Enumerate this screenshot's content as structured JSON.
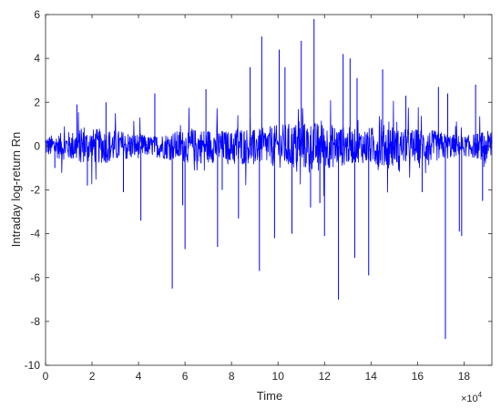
{
  "chart_data": {
    "type": "line",
    "title": "",
    "xlabel": "Time",
    "ylabel": "Intraday log-return Rn",
    "x_multiplier_base": "×10",
    "x_multiplier_exp": "4",
    "xlim": [
      0,
      19.2
    ],
    "ylim": [
      -10,
      6
    ],
    "x_ticks": [
      0,
      2,
      4,
      6,
      8,
      10,
      12,
      14,
      16,
      18
    ],
    "y_ticks": [
      6,
      4,
      2,
      0,
      -2,
      -4,
      -6,
      -8,
      -10
    ],
    "grid": false,
    "line_color": "#0000ff",
    "series": [
      {
        "values_note_free": true,
        "x": [
          0.0,
          0.15,
          0.4,
          1.35,
          1.8,
          2.6,
          3.35,
          4.1,
          4.7,
          5.25,
          5.45,
          5.5,
          5.9,
          6.0,
          6.9,
          7.4,
          7.6,
          8.3,
          8.8,
          9.2,
          9.3,
          9.4,
          10.05,
          10.6,
          11.0,
          11.4,
          11.55,
          12.0,
          12.4,
          12.6,
          13.1,
          13.3,
          13.4,
          13.9,
          14.5,
          15.5,
          16.6,
          16.9,
          17.2,
          17.3,
          17.8,
          17.9,
          18.2,
          18.5,
          18.8,
          19.2
        ],
        "y": [
          1.1,
          0.2,
          -1.0,
          1.9,
          -1.8,
          2.0,
          -2.1,
          -3.4,
          2.4,
          -2.0,
          -6.5,
          2.2,
          -2.7,
          -4.7,
          2.6,
          -4.6,
          -2.0,
          -3.3,
          3.6,
          -5.7,
          5.0,
          2.2,
          4.4,
          -4.0,
          4.8,
          -2.8,
          5.8,
          -4.1,
          2.7,
          -7.0,
          4.0,
          -5.1,
          3.1,
          -5.9,
          3.5,
          2.3,
          1.5,
          2.7,
          -8.8,
          2.4,
          -3.9,
          -4.1,
          2.3,
          2.8,
          -2.5,
          0.5
        ]
      }
    ],
    "spikes": [
      [
        0.4,
        -1.0
      ],
      [
        1.35,
        1.9
      ],
      [
        1.8,
        -1.8
      ],
      [
        2.6,
        2.0
      ],
      [
        3.35,
        -2.1
      ],
      [
        4.1,
        -3.4
      ],
      [
        4.7,
        2.4
      ],
      [
        5.45,
        -6.5
      ],
      [
        5.9,
        -2.7
      ],
      [
        6.0,
        -4.7
      ],
      [
        6.9,
        2.6
      ],
      [
        7.4,
        -4.6
      ],
      [
        7.6,
        -2.0
      ],
      [
        8.3,
        -3.3
      ],
      [
        8.8,
        3.6
      ],
      [
        9.2,
        -5.7
      ],
      [
        9.3,
        5.0
      ],
      [
        10.05,
        4.4
      ],
      [
        10.6,
        -4.0
      ],
      [
        11.0,
        4.8
      ],
      [
        11.4,
        -2.8
      ],
      [
        11.55,
        5.8
      ],
      [
        12.0,
        -4.1
      ],
      [
        12.6,
        -7.0
      ],
      [
        13.1,
        4.0
      ],
      [
        13.3,
        -5.1
      ],
      [
        13.4,
        3.1
      ],
      [
        13.9,
        -5.9
      ],
      [
        14.5,
        3.5
      ],
      [
        15.5,
        2.3
      ],
      [
        16.9,
        2.7
      ],
      [
        17.2,
        -8.8
      ],
      [
        17.3,
        2.4
      ],
      [
        17.8,
        -3.9
      ],
      [
        17.9,
        -4.1
      ],
      [
        18.5,
        2.8
      ],
      [
        18.8,
        -2.5
      ],
      [
        12.8,
        4.2
      ],
      [
        10.3,
        3.6
      ],
      [
        9.85,
        -4.2
      ],
      [
        11.8,
        -2.6
      ],
      [
        16.2,
        -2.1
      ]
    ]
  }
}
